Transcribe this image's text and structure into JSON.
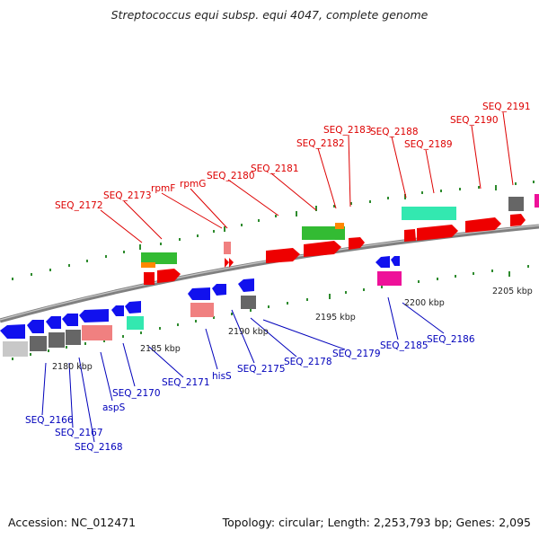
{
  "title": "Streptococcus equi subsp. equi 4047, complete genome",
  "footer": {
    "accession": "Accession: NC_012471",
    "summary": "Topology: circular; Length: 2,253,793 bp; Genes: 2,095"
  },
  "colors": {
    "backbone": "#8c8c8c",
    "top_label": "#dd0000",
    "bottom_label": "#0000bb",
    "tick": "#2e8b2e"
  },
  "scale_labels": [
    "2180 kbp",
    "2185 kbp",
    "2190 kbp",
    "2195 kbp",
    "2200 kbp",
    "2205 kbp"
  ],
  "top_labels": [
    "SEQ_2172",
    "SEQ_2173",
    "rpmF",
    "rpmG",
    "SEQ_2180",
    "SEQ_2181",
    "SEQ_2182",
    "SEQ_2183",
    "SEQ_2188",
    "SEQ_2189",
    "SEQ_2190",
    "SEQ_2191"
  ],
  "bottom_labels": [
    "SEQ_2166",
    "SEQ_2167",
    "SEQ_2168",
    "aspS",
    "SEQ_2170",
    "SEQ_2171",
    "hisS",
    "SEQ_2175",
    "SEQ_2178",
    "SEQ_2179",
    "SEQ_2185",
    "SEQ_2186"
  ]
}
